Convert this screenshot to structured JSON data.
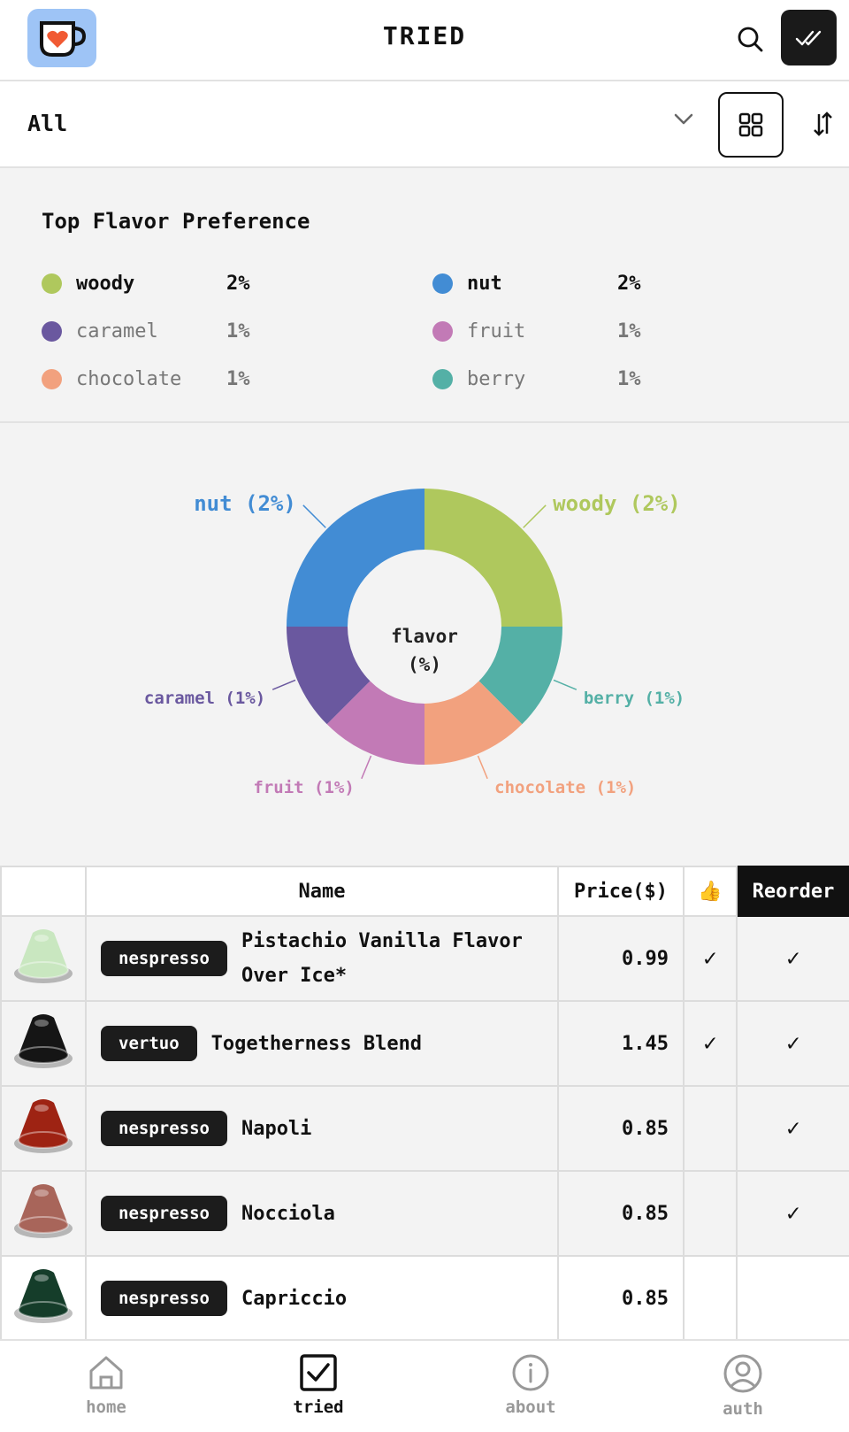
{
  "header": {
    "title": "TRIED"
  },
  "filter": {
    "selected": "All"
  },
  "flavor_preference": {
    "title": "Top Flavor Preference",
    "items": [
      {
        "name": "woody",
        "pct": "2%",
        "color": "#afc85d"
      },
      {
        "name": "nut",
        "pct": "2%",
        "color": "#428cd4"
      },
      {
        "name": "caramel",
        "pct": "1%",
        "color": "#6a589f"
      },
      {
        "name": "fruit",
        "pct": "1%",
        "color": "#c27ab6"
      },
      {
        "name": "chocolate",
        "pct": "1%",
        "color": "#f2a17e"
      },
      {
        "name": "berry",
        "pct": "1%",
        "color": "#54b0a6"
      }
    ]
  },
  "chart_data": {
    "type": "pie",
    "donut": true,
    "center_label": [
      "flavor",
      "(%)"
    ],
    "slices": [
      {
        "name": "woody",
        "value": 2,
        "label": "woody (2%)",
        "color": "#afc85d"
      },
      {
        "name": "berry",
        "value": 1,
        "label": "berry (1%)",
        "color": "#54b0a6"
      },
      {
        "name": "chocolate",
        "value": 1,
        "label": "chocolate (1%)",
        "color": "#f2a17e"
      },
      {
        "name": "fruit",
        "value": 1,
        "label": "fruit (1%)",
        "color": "#c27ab6"
      },
      {
        "name": "caramel",
        "value": 1,
        "label": "caramel (1%)",
        "color": "#6a589f"
      },
      {
        "name": "nut",
        "value": 2,
        "label": "nut (2%)",
        "color": "#428cd4"
      }
    ]
  },
  "table": {
    "headers": {
      "name": "Name",
      "price": "Price($)",
      "like": "👍",
      "reorder": "Reorder"
    },
    "check": "✓",
    "rows": [
      {
        "brand": "nespresso",
        "name": "Pistachio Vanilla Flavor Over Ice*",
        "price": "0.99",
        "liked": true,
        "reorder": true,
        "capsule_color": "#c9e7c0"
      },
      {
        "brand": "vertuo",
        "name": "Togetherness Blend",
        "price": "1.45",
        "liked": true,
        "reorder": true,
        "capsule_color": "#151515"
      },
      {
        "brand": "nespresso",
        "name": "Napoli",
        "price": "0.85",
        "liked": false,
        "reorder": true,
        "capsule_color": "#9e2313"
      },
      {
        "brand": "nespresso",
        "name": "Nocciola",
        "price": "0.85",
        "liked": false,
        "reorder": true,
        "capsule_color": "#a8655a"
      },
      {
        "brand": "nespresso",
        "name": "Capriccio",
        "price": "0.85",
        "liked": false,
        "reorder": false,
        "capsule_color": "#153d2a"
      }
    ]
  },
  "nav": {
    "items": [
      {
        "label": "home",
        "icon": "home-icon"
      },
      {
        "label": "tried",
        "icon": "checkbox-icon"
      },
      {
        "label": "about",
        "icon": "info-icon"
      },
      {
        "label": "auth",
        "icon": "user-icon"
      }
    ],
    "active": "tried"
  }
}
